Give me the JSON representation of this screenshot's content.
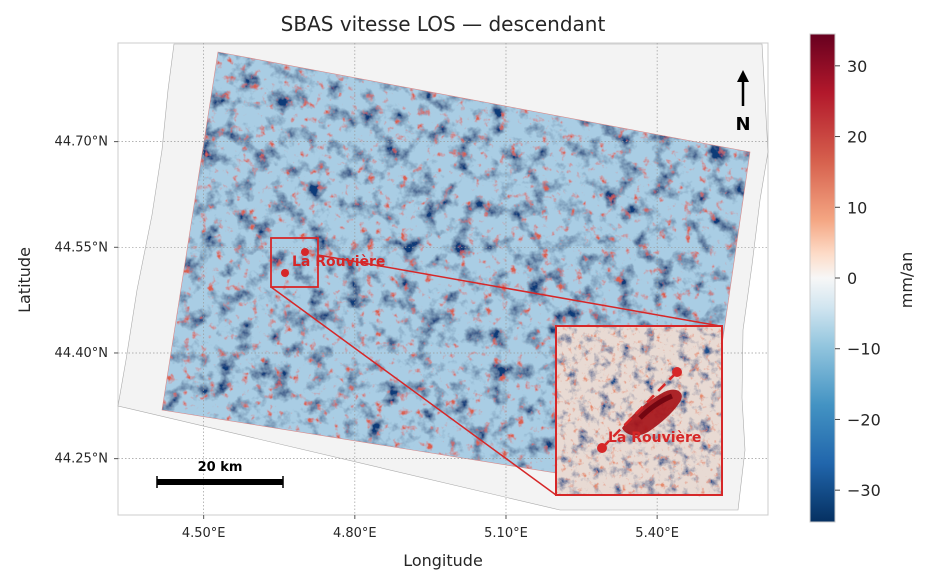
{
  "map": {
    "title": "SBAS vitesse LOS — descendant",
    "xlabel": "Longitude",
    "ylabel": "Latitude",
    "x_ticks": [
      {
        "lon": 4.5,
        "label": "4.50°E"
      },
      {
        "lon": 4.8,
        "label": "4.80°E"
      },
      {
        "lon": 5.1,
        "label": "5.10°E"
      },
      {
        "lon": 5.4,
        "label": "5.40°E"
      }
    ],
    "y_ticks": [
      {
        "lat": 44.7,
        "label": "44.70°N"
      },
      {
        "lat": 44.55,
        "label": "44.55°N"
      },
      {
        "lat": 44.4,
        "label": "44.40°N"
      },
      {
        "lat": 44.25,
        "label": "44.25°N"
      }
    ],
    "lon_range": [
      4.33,
      5.62
    ],
    "lat_range": [
      44.17,
      44.84
    ],
    "north_arrow_label": "N",
    "scale_bar_label": "20 km",
    "place_label": "La Rouvière",
    "place_label_inset": "La Rouvière",
    "colormap": "RdBu_r"
  },
  "colorbar": {
    "label": "mm/an",
    "range": [
      -34.5,
      34.5
    ],
    "ticks": [
      {
        "value": 30,
        "label": "30"
      },
      {
        "value": 20,
        "label": "20"
      },
      {
        "value": 10,
        "label": "10"
      },
      {
        "value": 0,
        "label": "0"
      },
      {
        "value": -10,
        "label": "−10"
      },
      {
        "value": -20,
        "label": "−20"
      },
      {
        "value": -30,
        "label": "−30"
      }
    ]
  },
  "colors": {
    "highlight": "#d62728",
    "frame": "#cccccc",
    "footprint_fill": "#f3f3f3"
  }
}
